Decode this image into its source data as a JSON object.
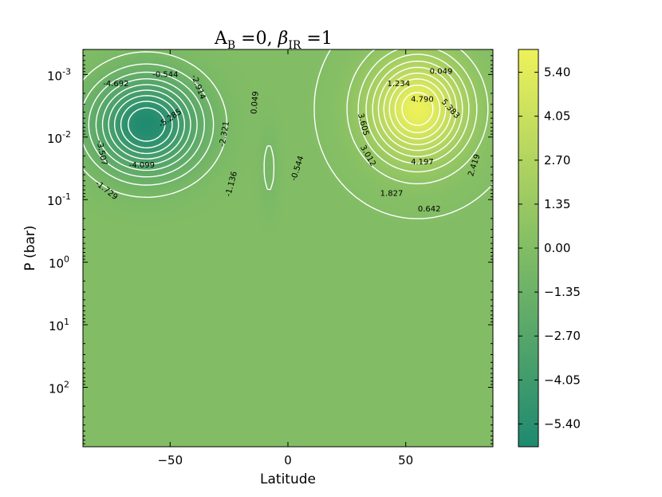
{
  "chart_data": {
    "type": "heatmap",
    "title": "A_B = 0, β_IR = 1",
    "title_parts": {
      "a": "A",
      "a_sub": "B",
      "eq1": " =0, ",
      "beta": "β",
      "beta_sub": "IR",
      "eq2": " =1"
    },
    "xlabel": "Latitude",
    "ylabel": "P (bar)",
    "xlim": [
      -87,
      87
    ],
    "ylim_log10": [
      -3.4,
      2.95
    ],
    "y_scale": "log",
    "y_inverted": true,
    "x_ticks": [
      {
        "value": -50,
        "label": "−50"
      },
      {
        "value": 0,
        "label": "0"
      },
      {
        "value": 50,
        "label": "50"
      }
    ],
    "y_ticks": [
      {
        "value": -3,
        "base": "10",
        "exp": "-3"
      },
      {
        "value": -2,
        "base": "10",
        "exp": "-2"
      },
      {
        "value": -1,
        "base": "10",
        "exp": "-1"
      },
      {
        "value": 0,
        "base": "10",
        "exp": "0"
      },
      {
        "value": 1,
        "base": "10",
        "exp": "1"
      },
      {
        "value": 2,
        "base": "10",
        "exp": "2"
      }
    ],
    "colorbar": {
      "range": [
        -6.1,
        6.1
      ],
      "ticks": [
        {
          "value": 5.4,
          "label": "5.40"
        },
        {
          "value": 4.05,
          "label": "4.05"
        },
        {
          "value": 2.7,
          "label": "2.70"
        },
        {
          "value": 1.35,
          "label": "1.35"
        },
        {
          "value": 0.0,
          "label": "0.00"
        },
        {
          "value": -1.35,
          "label": "−1.35"
        },
        {
          "value": -2.7,
          "label": "−2.70"
        },
        {
          "value": -4.05,
          "label": "−4.05"
        },
        {
          "value": -5.4,
          "label": "−5.40"
        }
      ],
      "colors": {
        "low": "#1f8a70",
        "mid": "#82bd65",
        "high": "#eef25a"
      }
    },
    "cells": [
      {
        "center": [
          -60,
          -2.2
        ],
        "width": [
          22,
          0.75
        ],
        "amp": -6.0
      },
      {
        "center": [
          -8,
          -1.5
        ],
        "width": [
          4,
          0.7
        ],
        "amp": -0.7
      },
      {
        "center": [
          55,
          -2.45
        ],
        "width": [
          20,
          0.8
        ],
        "amp": 6.0
      }
    ],
    "contour_levels": [
      0.049,
      0.642,
      1.234,
      1.827,
      2.419,
      3.012,
      3.605,
      4.197,
      4.79,
      5.383,
      -0.544,
      -1.136,
      -1.729,
      -2.321,
      -2.914,
      -3.507,
      -4.099,
      -4.692,
      -5.285
    ],
    "contour_labels": [
      {
        "text": "-0.544",
        "x": -52,
        "y": -3.0,
        "rot": 0
      },
      {
        "text": "-4.692",
        "x": -73,
        "y": -2.85,
        "rot": 0
      },
      {
        "text": "-2.914",
        "x": -38,
        "y": -2.8,
        "rot": 68
      },
      {
        "text": "0.049",
        "x": -14,
        "y": -2.55,
        "rot": -85
      },
      {
        "text": "-5.285",
        "x": -50,
        "y": -2.3,
        "rot": -35
      },
      {
        "text": "-2.321",
        "x": -27,
        "y": -2.05,
        "rot": -80
      },
      {
        "text": "-3.507",
        "x": -79,
        "y": -1.75,
        "rot": 78
      },
      {
        "text": "-4.099",
        "x": -62,
        "y": -1.55,
        "rot": 0
      },
      {
        "text": "-1.136",
        "x": -24,
        "y": -1.25,
        "rot": -75
      },
      {
        "text": "-1.729",
        "x": -77,
        "y": -1.15,
        "rot": 38
      },
      {
        "text": "-0.544",
        "x": 4,
        "y": -1.5,
        "rot": -72
      },
      {
        "text": "0.049",
        "x": 65,
        "y": -3.05,
        "rot": 0
      },
      {
        "text": "1.234",
        "x": 47,
        "y": -2.85,
        "rot": 0
      },
      {
        "text": "4.790",
        "x": 57,
        "y": -2.6,
        "rot": 0
      },
      {
        "text": "5.383",
        "x": 69,
        "y": -2.45,
        "rot": 48
      },
      {
        "text": "3.605",
        "x": 32,
        "y": -2.2,
        "rot": 75
      },
      {
        "text": "3.012",
        "x": 34,
        "y": -1.7,
        "rot": 60
      },
      {
        "text": "4.197",
        "x": 57,
        "y": -1.6,
        "rot": 0
      },
      {
        "text": "2.419",
        "x": 79,
        "y": -1.55,
        "rot": -72
      },
      {
        "text": "1.827",
        "x": 44,
        "y": -1.1,
        "rot": 0
      },
      {
        "text": "0.642",
        "x": 60,
        "y": -0.85,
        "rot": 0
      }
    ]
  }
}
